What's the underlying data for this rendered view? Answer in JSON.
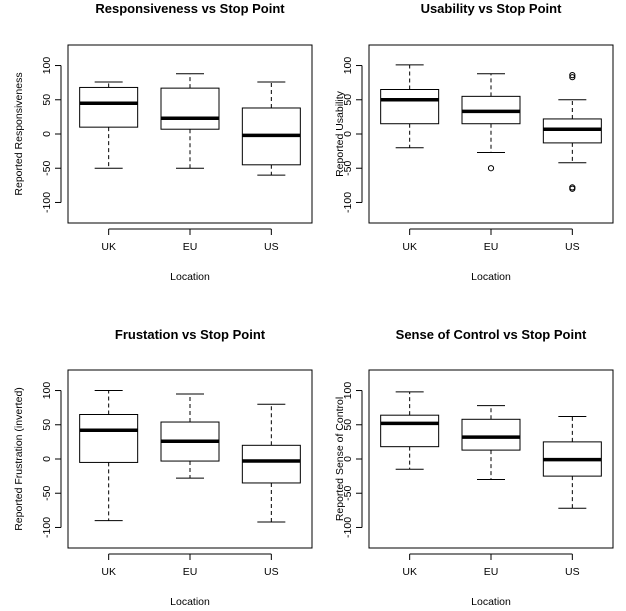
{
  "chart_data": [
    {
      "type": "boxplot",
      "title": "Responsiveness vs Stop Point",
      "xlabel": "Location",
      "ylabel": "Reported Responsiveness",
      "ylim": [
        -130,
        130
      ],
      "yticks": [
        "-100",
        "-50",
        "0",
        "50",
        "100"
      ],
      "categories": [
        "UK",
        "EU",
        "US"
      ],
      "boxes": [
        {
          "whisker_low": -50,
          "q1": 10,
          "median": 45,
          "q3": 68,
          "whisker_high": 76,
          "outliers": []
        },
        {
          "whisker_low": -50,
          "q1": 7,
          "median": 23,
          "q3": 67,
          "whisker_high": 88,
          "outliers": []
        },
        {
          "whisker_low": -60,
          "q1": -45,
          "median": -2,
          "q3": 38,
          "whisker_high": 76,
          "outliers": []
        }
      ]
    },
    {
      "type": "boxplot",
      "title": "Usability vs Stop Point",
      "xlabel": "Location",
      "ylabel": "Reported Usability",
      "ylim": [
        -130,
        130
      ],
      "yticks": [
        "-100",
        "-50",
        "0",
        "50",
        "100"
      ],
      "categories": [
        "UK",
        "EU",
        "US"
      ],
      "boxes": [
        {
          "whisker_low": -20,
          "q1": 15,
          "median": 50,
          "q3": 65,
          "whisker_high": 101,
          "outliers": []
        },
        {
          "whisker_low": -27,
          "q1": 15,
          "median": 33,
          "q3": 55,
          "whisker_high": 88,
          "outliers": [
            -50
          ]
        },
        {
          "whisker_low": -42,
          "q1": -13,
          "median": 7,
          "q3": 22,
          "whisker_high": 50,
          "outliers": [
            83,
            86,
            -78,
            -80
          ]
        }
      ]
    },
    {
      "type": "boxplot",
      "title": "Frustation vs Stop Point",
      "xlabel": "Location",
      "ylabel": "Reported Frustration (inverted)",
      "ylim": [
        -130,
        130
      ],
      "yticks": [
        "-100",
        "-50",
        "0",
        "50",
        "100"
      ],
      "categories": [
        "UK",
        "EU",
        "US"
      ],
      "boxes": [
        {
          "whisker_low": -90,
          "q1": -5,
          "median": 42,
          "q3": 65,
          "whisker_high": 100,
          "outliers": []
        },
        {
          "whisker_low": -28,
          "q1": -3,
          "median": 26,
          "q3": 54,
          "whisker_high": 95,
          "outliers": []
        },
        {
          "whisker_low": -92,
          "q1": -35,
          "median": -3,
          "q3": 20,
          "whisker_high": 80,
          "outliers": []
        }
      ]
    },
    {
      "type": "boxplot",
      "title": "Sense of Control vs Stop Point",
      "xlabel": "Location",
      "ylabel": "Reported Sense of Control",
      "ylim": [
        -130,
        130
      ],
      "yticks": [
        "-100",
        "-50",
        "0",
        "50",
        "100"
      ],
      "categories": [
        "UK",
        "EU",
        "US"
      ],
      "boxes": [
        {
          "whisker_low": -15,
          "q1": 18,
          "median": 52,
          "q3": 64,
          "whisker_high": 98,
          "outliers": []
        },
        {
          "whisker_low": -30,
          "q1": 13,
          "median": 32,
          "q3": 58,
          "whisker_high": 78,
          "outliers": []
        },
        {
          "whisker_low": -72,
          "q1": -25,
          "median": -1,
          "q3": 25,
          "whisker_high": 62,
          "outliers": []
        }
      ]
    }
  ]
}
